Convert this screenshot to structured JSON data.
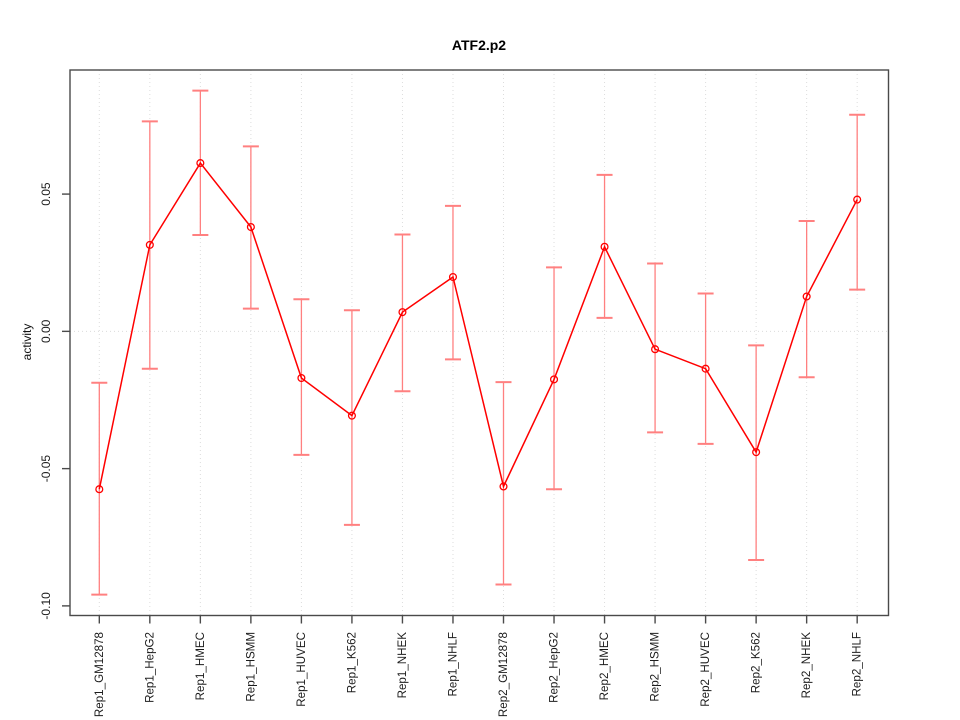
{
  "title": "ATF2.p2",
  "chart_data": {
    "type": "line",
    "title": "ATF2.p2",
    "xlabel": "",
    "ylabel": "activity",
    "categories": [
      "Rep1_GM12878",
      "Rep1_HepG2",
      "Rep1_HMEC",
      "Rep1_HSMM",
      "Rep1_HUVEC",
      "Rep1_K562",
      "Rep1_NHEK",
      "Rep1_NHLF",
      "Rep2_GM12878",
      "Rep2_HepG2",
      "Rep2_HMEC",
      "Rep2_HSMM",
      "Rep2_HUVEC",
      "Rep2_K562",
      "Rep2_NHEK",
      "Rep2_NHLF"
    ],
    "values": [
      -0.0575,
      0.0315,
      0.0613,
      0.038,
      -0.017,
      -0.0307,
      0.007,
      0.0198,
      -0.0565,
      -0.0175,
      0.0308,
      -0.0065,
      -0.0136,
      -0.044,
      0.0127,
      0.048
    ],
    "upper": [
      -0.0187,
      0.0765,
      0.0877,
      0.0674,
      0.0117,
      0.0077,
      0.0353,
      0.0457,
      -0.0185,
      0.0233,
      0.057,
      0.0247,
      0.0138,
      -0.0051,
      0.0402,
      0.0789
    ],
    "lower": [
      -0.0959,
      -0.0136,
      0.0351,
      0.0083,
      -0.045,
      -0.0705,
      -0.0218,
      -0.0102,
      -0.0922,
      -0.0575,
      0.0049,
      -0.0368,
      -0.041,
      -0.0833,
      -0.0167,
      0.0152
    ],
    "yticks": [
      0.05,
      0.0,
      -0.05,
      -0.1
    ],
    "ytick_labels": [
      "0.05",
      "0.00",
      "-0.05",
      "-0.10"
    ],
    "ylim": [
      -0.1035,
      0.0952
    ],
    "grid": {
      "vertical": "dotted line at every category",
      "horizontal": "dotted line at y=0"
    },
    "legend": "none"
  },
  "colors": {
    "line": "#ff0000",
    "point_stroke": "#ff0000",
    "error_bar": "#ff8080",
    "grid": "#dcdcdc",
    "box": "#4a4a4a",
    "text": "#1c1c1c"
  }
}
